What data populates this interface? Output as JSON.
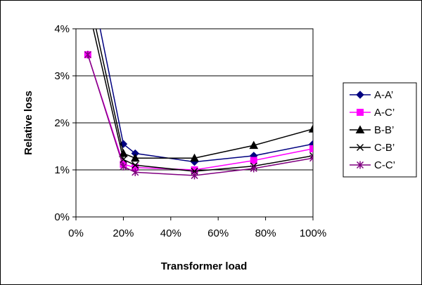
{
  "chart_data": {
    "type": "line",
    "xlabel": "Transformer load",
    "ylabel": "Relative loss",
    "xlim": [
      0,
      100
    ],
    "ylim": [
      0,
      4
    ],
    "x_ticks": [
      "0%",
      "20%",
      "40%",
      "60%",
      "80%",
      "100%"
    ],
    "y_ticks": [
      "0%",
      "1%",
      "2%",
      "3%",
      "4%"
    ],
    "grid": "horizontal",
    "legend_position": "right",
    "series": [
      {
        "name": "A-A’",
        "color": "#000080",
        "marker": "diamond",
        "x": [
          5,
          20,
          25,
          50,
          75,
          100
        ],
        "y": [
          5.3,
          1.55,
          1.35,
          1.17,
          1.3,
          1.55
        ]
      },
      {
        "name": "A-C’",
        "color": "#ff00ff",
        "marker": "square",
        "x": [
          5,
          20,
          25,
          50,
          75,
          100
        ],
        "y": [
          3.45,
          1.12,
          1.05,
          1.0,
          1.2,
          1.45
        ]
      },
      {
        "name": "B-B’",
        "color": "#000000",
        "marker": "triangle",
        "x": [
          5,
          20,
          25,
          50,
          75,
          100
        ],
        "y": [
          4.8,
          1.35,
          1.25,
          1.25,
          1.52,
          1.87
        ]
      },
      {
        "name": "C-B’",
        "color": "#000000",
        "marker": "x",
        "x": [
          5,
          20,
          25,
          50,
          75,
          100
        ],
        "y": [
          4.5,
          1.22,
          1.1,
          0.97,
          1.08,
          1.3
        ]
      },
      {
        "name": "C-C’",
        "color": "#800080",
        "marker": "asterisk",
        "x": [
          5,
          20,
          25,
          50,
          75,
          100
        ],
        "y": [
          3.45,
          1.07,
          0.95,
          0.88,
          1.03,
          1.25
        ]
      }
    ]
  }
}
